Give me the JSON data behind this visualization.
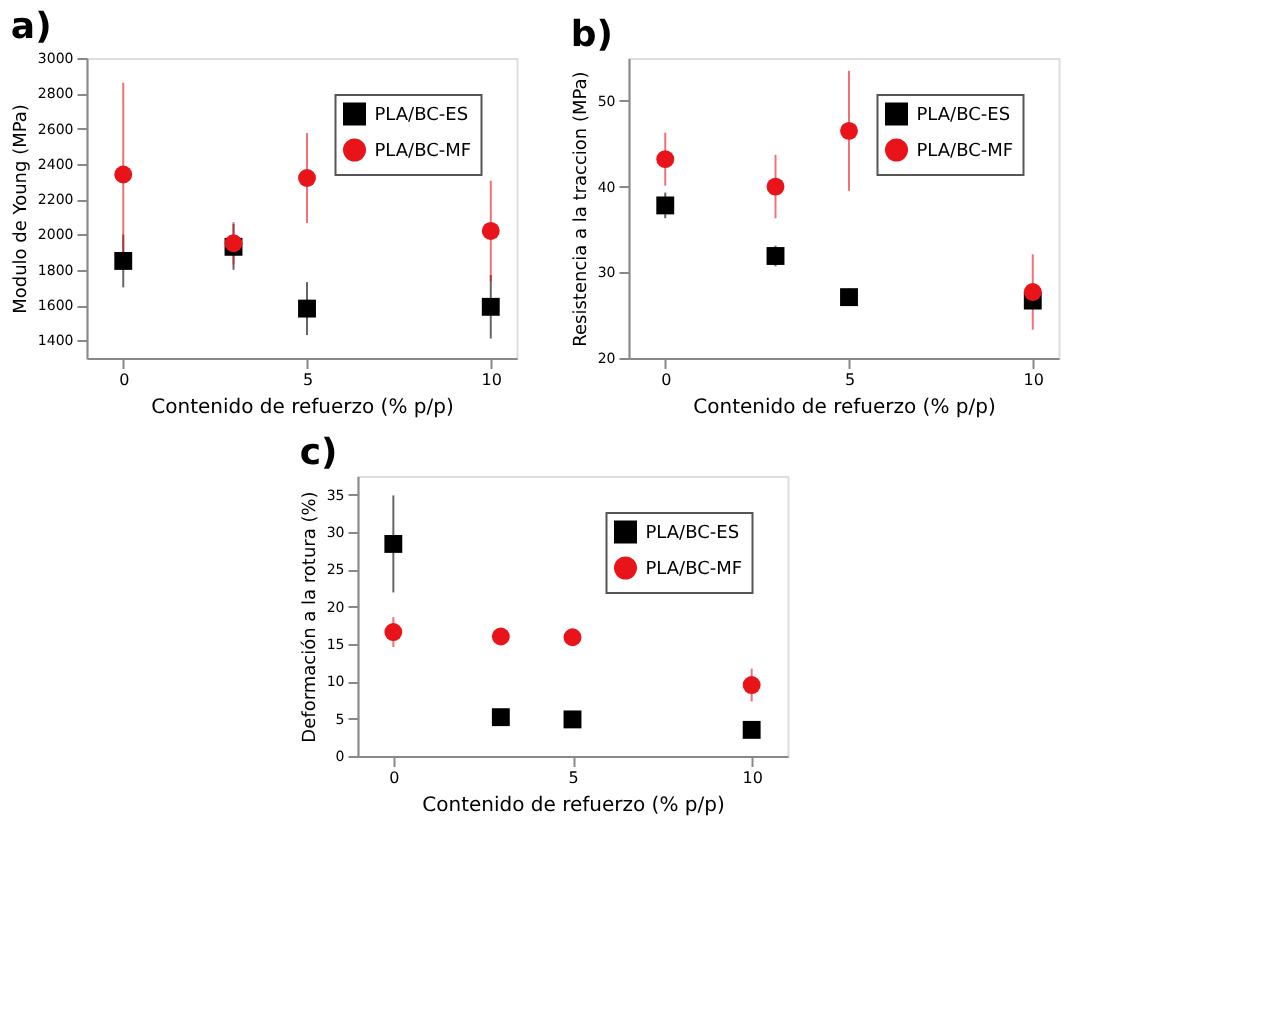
{
  "chart_data": [
    {
      "type": "scatter",
      "title": "a)",
      "xlabel": "Contenido de refuerzo (% p/p)",
      "ylabel": "Modulo de Young (MPa)",
      "x": [
        0,
        3,
        5,
        10
      ],
      "xlim": [
        -1,
        10.7
      ],
      "xticks": [
        0,
        5,
        10
      ],
      "ylim": [
        1300,
        3000
      ],
      "yticks": [
        1400,
        1600,
        1800,
        2000,
        2200,
        2400,
        2600,
        2800,
        3000
      ],
      "grid": false,
      "legend": "top right",
      "series": [
        {
          "name": "PLA/BC-ES",
          "color": "#000000",
          "marker": "square",
          "values": [
            1850,
            1930,
            1580,
            1590
          ],
          "errors": [
            150,
            130,
            150,
            180
          ]
        },
        {
          "name": "PLA/BC-MF",
          "color": "#e8141a",
          "marker": "circle",
          "values": [
            2340,
            1950,
            2320,
            2020
          ],
          "errors": [
            520,
            120,
            255,
            285
          ]
        }
      ]
    },
    {
      "type": "scatter",
      "title": "b)",
      "xlabel": "Contenido de refuerzo (% p/p)",
      "ylabel": "Resistencia a la traccion (MPa)",
      "x": [
        0,
        3,
        5,
        10
      ],
      "xlim": [
        -1,
        10.7
      ],
      "xticks": [
        0,
        5,
        10
      ],
      "ylim": [
        20,
        55
      ],
      "yticks": [
        20,
        30,
        40,
        50
      ],
      "grid": false,
      "legend": "top right",
      "series": [
        {
          "name": "PLA/BC-ES",
          "color": "#000000",
          "marker": "square",
          "values": [
            37.8,
            31.9,
            27.1,
            26.7
          ],
          "errors": [
            1.5,
            1.2,
            1.0,
            1.0
          ]
        },
        {
          "name": "PLA/BC-MF",
          "color": "#e8141a",
          "marker": "circle",
          "values": [
            43.2,
            40.0,
            46.5,
            27.7
          ],
          "errors": [
            3.1,
            3.7,
            7.0,
            4.4
          ]
        }
      ]
    },
    {
      "type": "scatter",
      "title": "c)",
      "xlabel": "Contenido de refuerzo (% p/p)",
      "ylabel": "Deformación a la rotura (%)",
      "x": [
        0,
        3,
        5,
        10
      ],
      "xlim": [
        -1,
        11
      ],
      "xticks": [
        0,
        5,
        10
      ],
      "ylim": [
        0,
        37.5
      ],
      "yticks": [
        0,
        5,
        10,
        15,
        20,
        25,
        30,
        35
      ],
      "grid": false,
      "legend": "top right",
      "series": [
        {
          "name": "PLA/BC-ES",
          "color": "#000000",
          "marker": "square",
          "values": [
            28.4,
            5.2,
            4.9,
            3.5
          ],
          "errors": [
            6.5,
            0.8,
            0.6,
            0.4
          ]
        },
        {
          "name": "PLA/BC-MF",
          "color": "#e8141a",
          "marker": "circle",
          "values": [
            16.6,
            16.0,
            15.9,
            9.5
          ],
          "errors": [
            2.0,
            0.5,
            0.5,
            2.2
          ]
        }
      ]
    }
  ]
}
